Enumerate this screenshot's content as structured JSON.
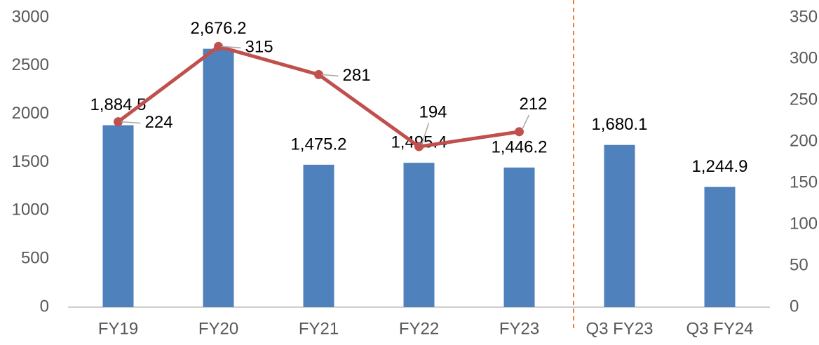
{
  "chart_data": {
    "type": "bar_line",
    "categories": [
      "FY19",
      "FY20",
      "FY21",
      "FY22",
      "FY23",
      "Q3 FY23",
      "Q3 FY24"
    ],
    "series": [
      {
        "type": "bar",
        "color": "#4f81bd",
        "values": [
          1884.5,
          2676.2,
          1475.2,
          1495.4,
          1446.2,
          1680.1,
          1244.9
        ],
        "value_labels": [
          "1,884.5",
          "2,676.2",
          "1,475.2",
          "1,495.4",
          "1,446.2",
          "1,680.1",
          "1,244.9"
        ]
      },
      {
        "type": "line",
        "axis": "y2",
        "color": "#c0504d",
        "values": [
          224,
          315,
          281,
          194,
          212,
          null,
          null
        ]
      }
    ],
    "ylim": [
      0,
      3000
    ],
    "yticks": [
      0,
      500,
      1000,
      1500,
      2000,
      2500,
      3000
    ],
    "y2lim": [
      0,
      350
    ],
    "y2ticks": [
      0,
      50,
      100,
      150,
      200,
      250,
      300,
      350
    ],
    "grid": false
  }
}
